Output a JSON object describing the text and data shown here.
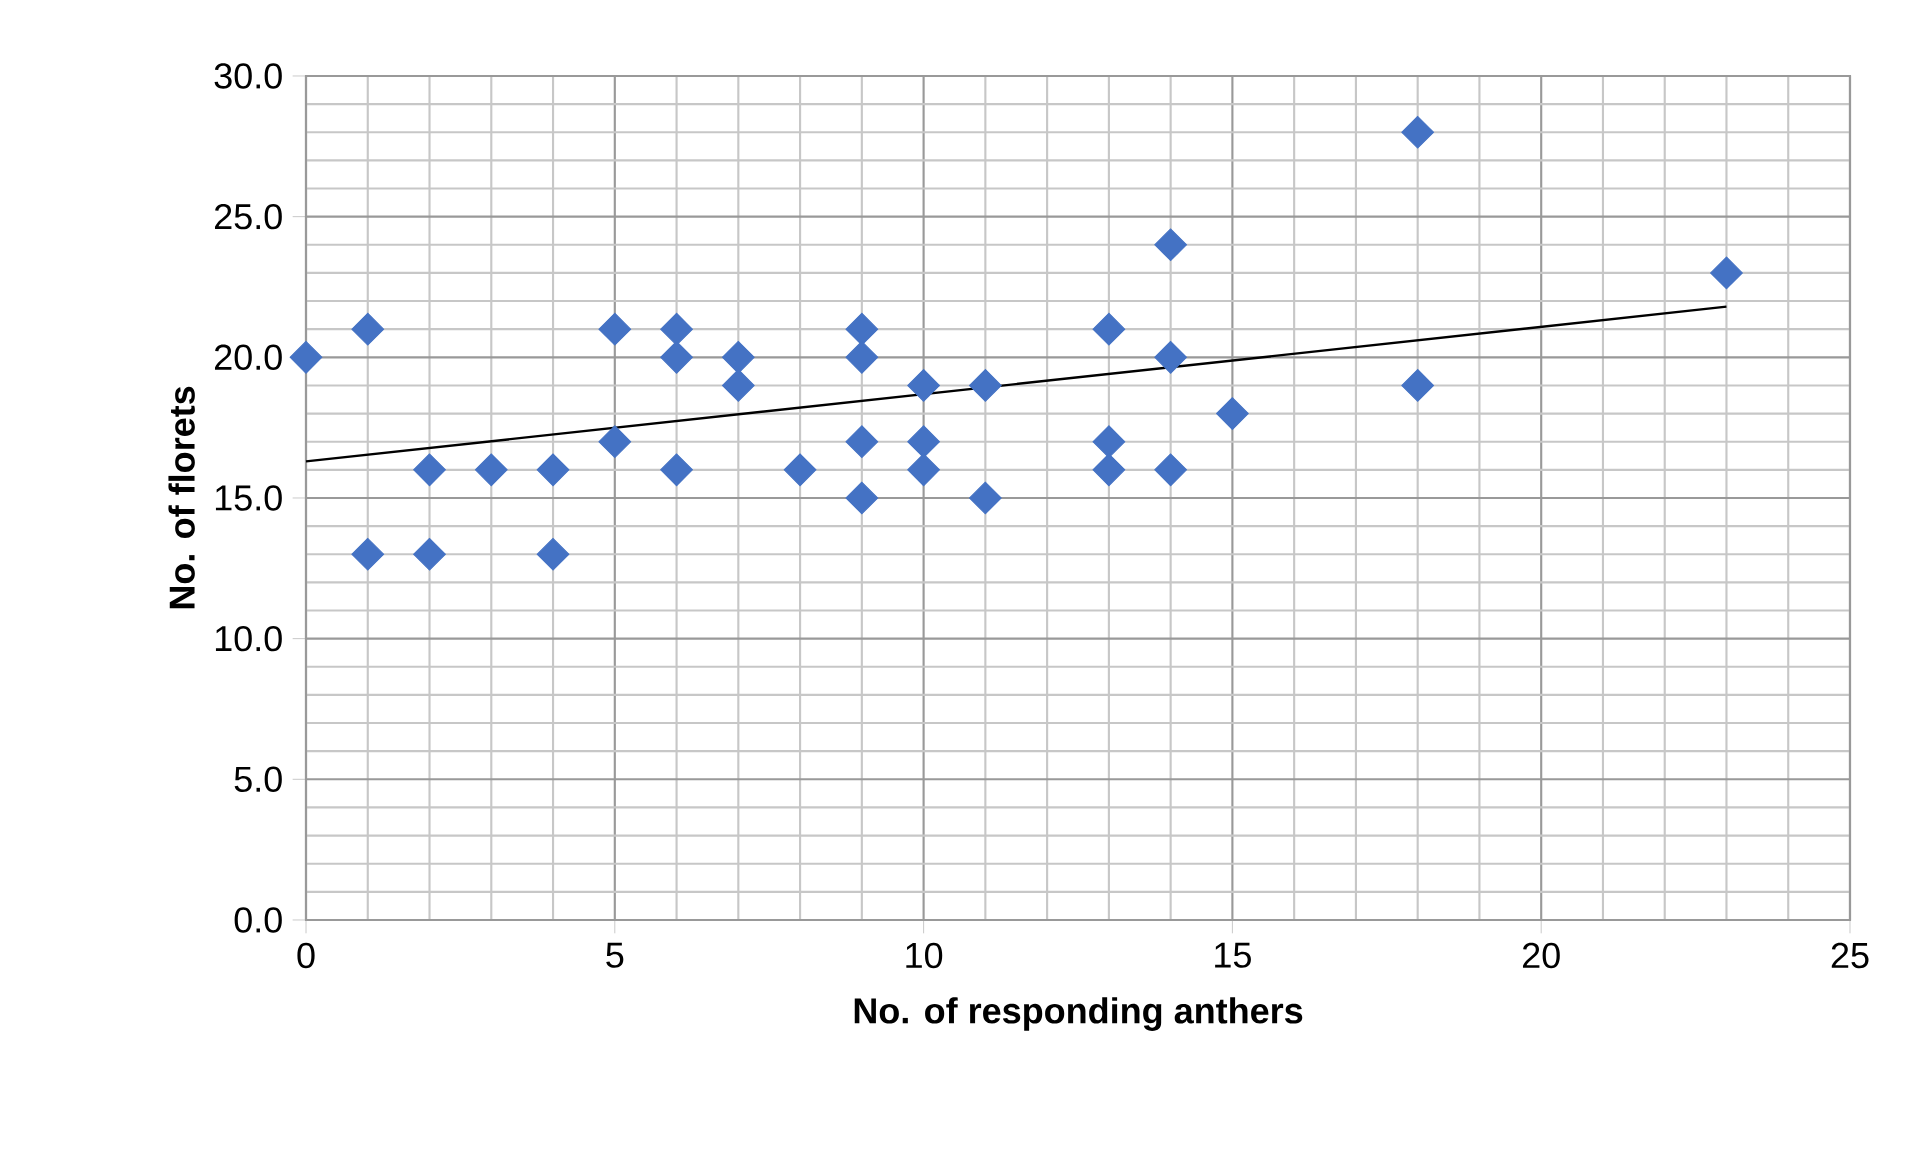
{
  "chart_data": {
    "type": "scatter",
    "xlabel": "No. of responding anthers",
    "ylabel": "No. of florets",
    "xlim": [
      0,
      25
    ],
    "ylim": [
      0,
      30
    ],
    "xticks": [
      0,
      5,
      10,
      15,
      20,
      25
    ],
    "yticks": [
      {
        "value": 0,
        "label": "0.0"
      },
      {
        "value": 5,
        "label": "5.0"
      },
      {
        "value": 10,
        "label": "10.0"
      },
      {
        "value": 15,
        "label": "15.0"
      },
      {
        "value": 20,
        "label": "20.0"
      },
      {
        "value": 25,
        "label": "25.0"
      },
      {
        "value": 30,
        "label": "30.0"
      }
    ],
    "grid": true,
    "marker": "diamond",
    "series": [
      {
        "color": "#4472c4",
        "x": [
          0,
          1,
          1,
          2,
          2,
          3,
          4,
          4,
          5,
          5,
          6,
          6,
          6,
          7,
          7,
          8,
          9,
          9,
          9,
          9,
          10,
          10,
          10,
          11,
          11,
          13,
          13,
          13,
          14,
          14,
          14,
          15,
          18,
          18,
          23
        ],
        "values": [
          20,
          21,
          13,
          16,
          13,
          16,
          16,
          13,
          21,
          17,
          21,
          20,
          16,
          20,
          19,
          16,
          21,
          20,
          17,
          15,
          19,
          17,
          16,
          19,
          15,
          21,
          17,
          16,
          24,
          20,
          16,
          18,
          28,
          19,
          23
        ]
      },
      {
        "type": "line",
        "marker": "none",
        "color": "#000000",
        "x": [
          0,
          23
        ],
        "values": [
          16.3,
          21.8
        ]
      }
    ]
  }
}
